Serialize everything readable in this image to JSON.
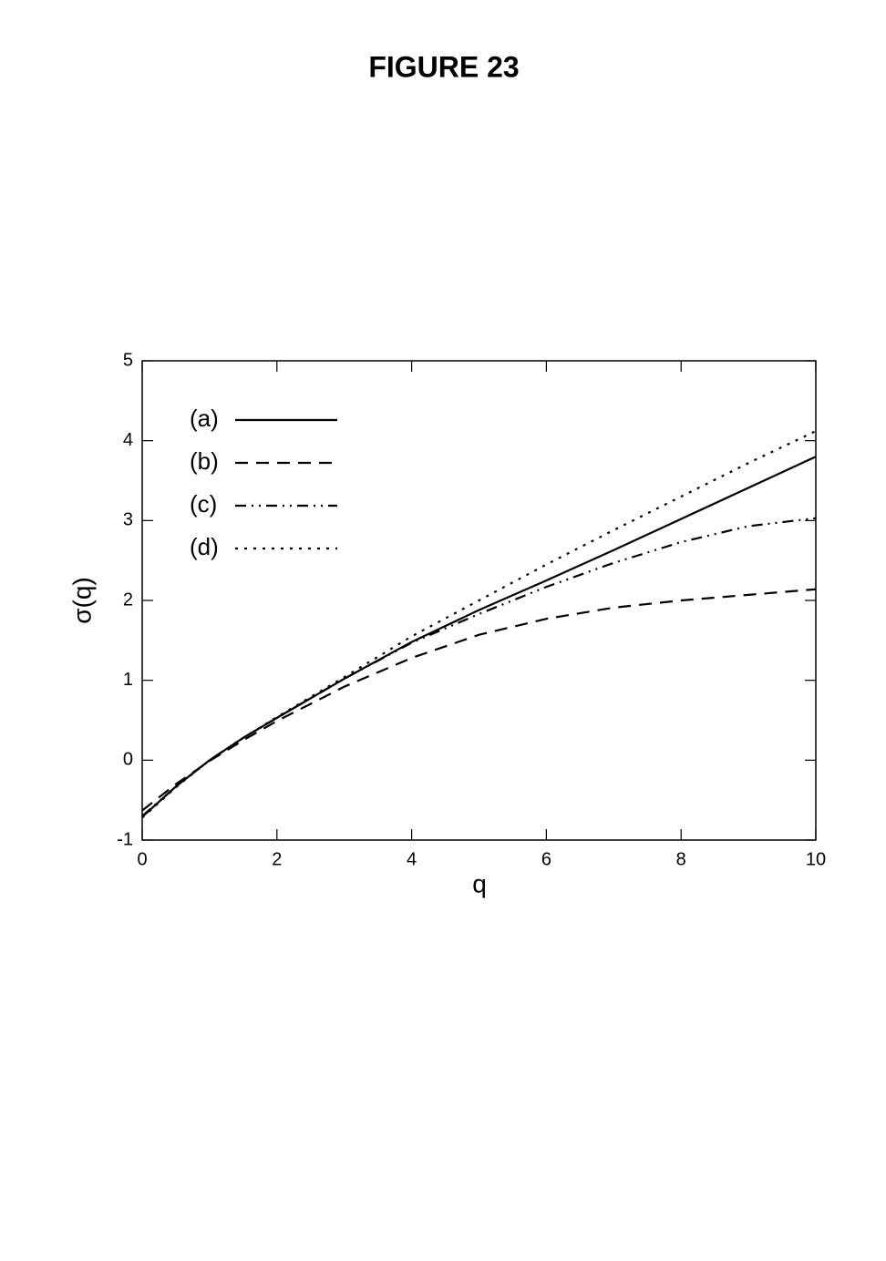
{
  "chart_data": {
    "type": "line",
    "title": "FIGURE 23",
    "x_label": "q",
    "y_label": "σ(q)",
    "x": [
      0,
      0.5,
      1,
      1.5,
      2,
      3,
      4,
      5,
      6,
      7,
      8,
      9,
      10
    ],
    "series": [
      {
        "name": "(a)",
        "color": "#000000",
        "dash": "solid",
        "values": [
          -0.71,
          -0.33,
          0.0,
          0.28,
          0.53,
          1.02,
          1.48,
          1.88,
          2.25,
          2.63,
          3.02,
          3.41,
          3.8
        ]
      },
      {
        "name": "(b)",
        "color": "#000000",
        "dash": "dashed",
        "values": [
          -0.63,
          -0.3,
          -0.01,
          0.25,
          0.49,
          0.92,
          1.28,
          1.57,
          1.77,
          1.91,
          2.0,
          2.07,
          2.14
        ]
      },
      {
        "name": "(c)",
        "color": "#000000",
        "dash": "dash-dot-dot",
        "values": [
          -0.7,
          -0.33,
          0.0,
          0.28,
          0.53,
          1.02,
          1.47,
          1.83,
          2.17,
          2.47,
          2.73,
          2.93,
          3.03
        ]
      },
      {
        "name": "(d)",
        "color": "#000000",
        "dash": "dotted",
        "values": [
          -0.72,
          -0.34,
          0.0,
          0.28,
          0.54,
          1.04,
          1.55,
          2.0,
          2.45,
          2.88,
          3.3,
          3.72,
          4.12
        ]
      }
    ],
    "xlim": [
      0,
      10
    ],
    "xticks": [
      0,
      2,
      4,
      6,
      8,
      10
    ],
    "ylim": [
      -1,
      5
    ],
    "yticks": [
      -1,
      0,
      1,
      2,
      3,
      4,
      5
    ],
    "legend": "upper-left",
    "grid": false
  }
}
